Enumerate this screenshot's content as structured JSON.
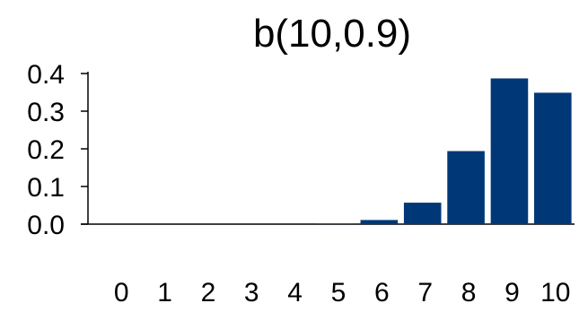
{
  "chart_data": {
    "type": "bar",
    "title": "b(10,0.9)",
    "xlabel": "",
    "ylabel": "",
    "categories": [
      "0",
      "1",
      "2",
      "3",
      "4",
      "5",
      "6",
      "7",
      "8",
      "9",
      "10"
    ],
    "values": [
      0.0,
      0.0,
      0.0,
      0.0,
      0.0,
      0.0015,
      0.011,
      0.057,
      0.194,
      0.387,
      0.349
    ],
    "y_ticks": [
      "0.0",
      "0.1",
      "0.2",
      "0.3",
      "0.4"
    ],
    "ylim": [
      0,
      0.4
    ],
    "grid": false,
    "legend": "none",
    "colors": {
      "bar": "#003877",
      "axis": "#000000",
      "text": "#000000"
    }
  }
}
